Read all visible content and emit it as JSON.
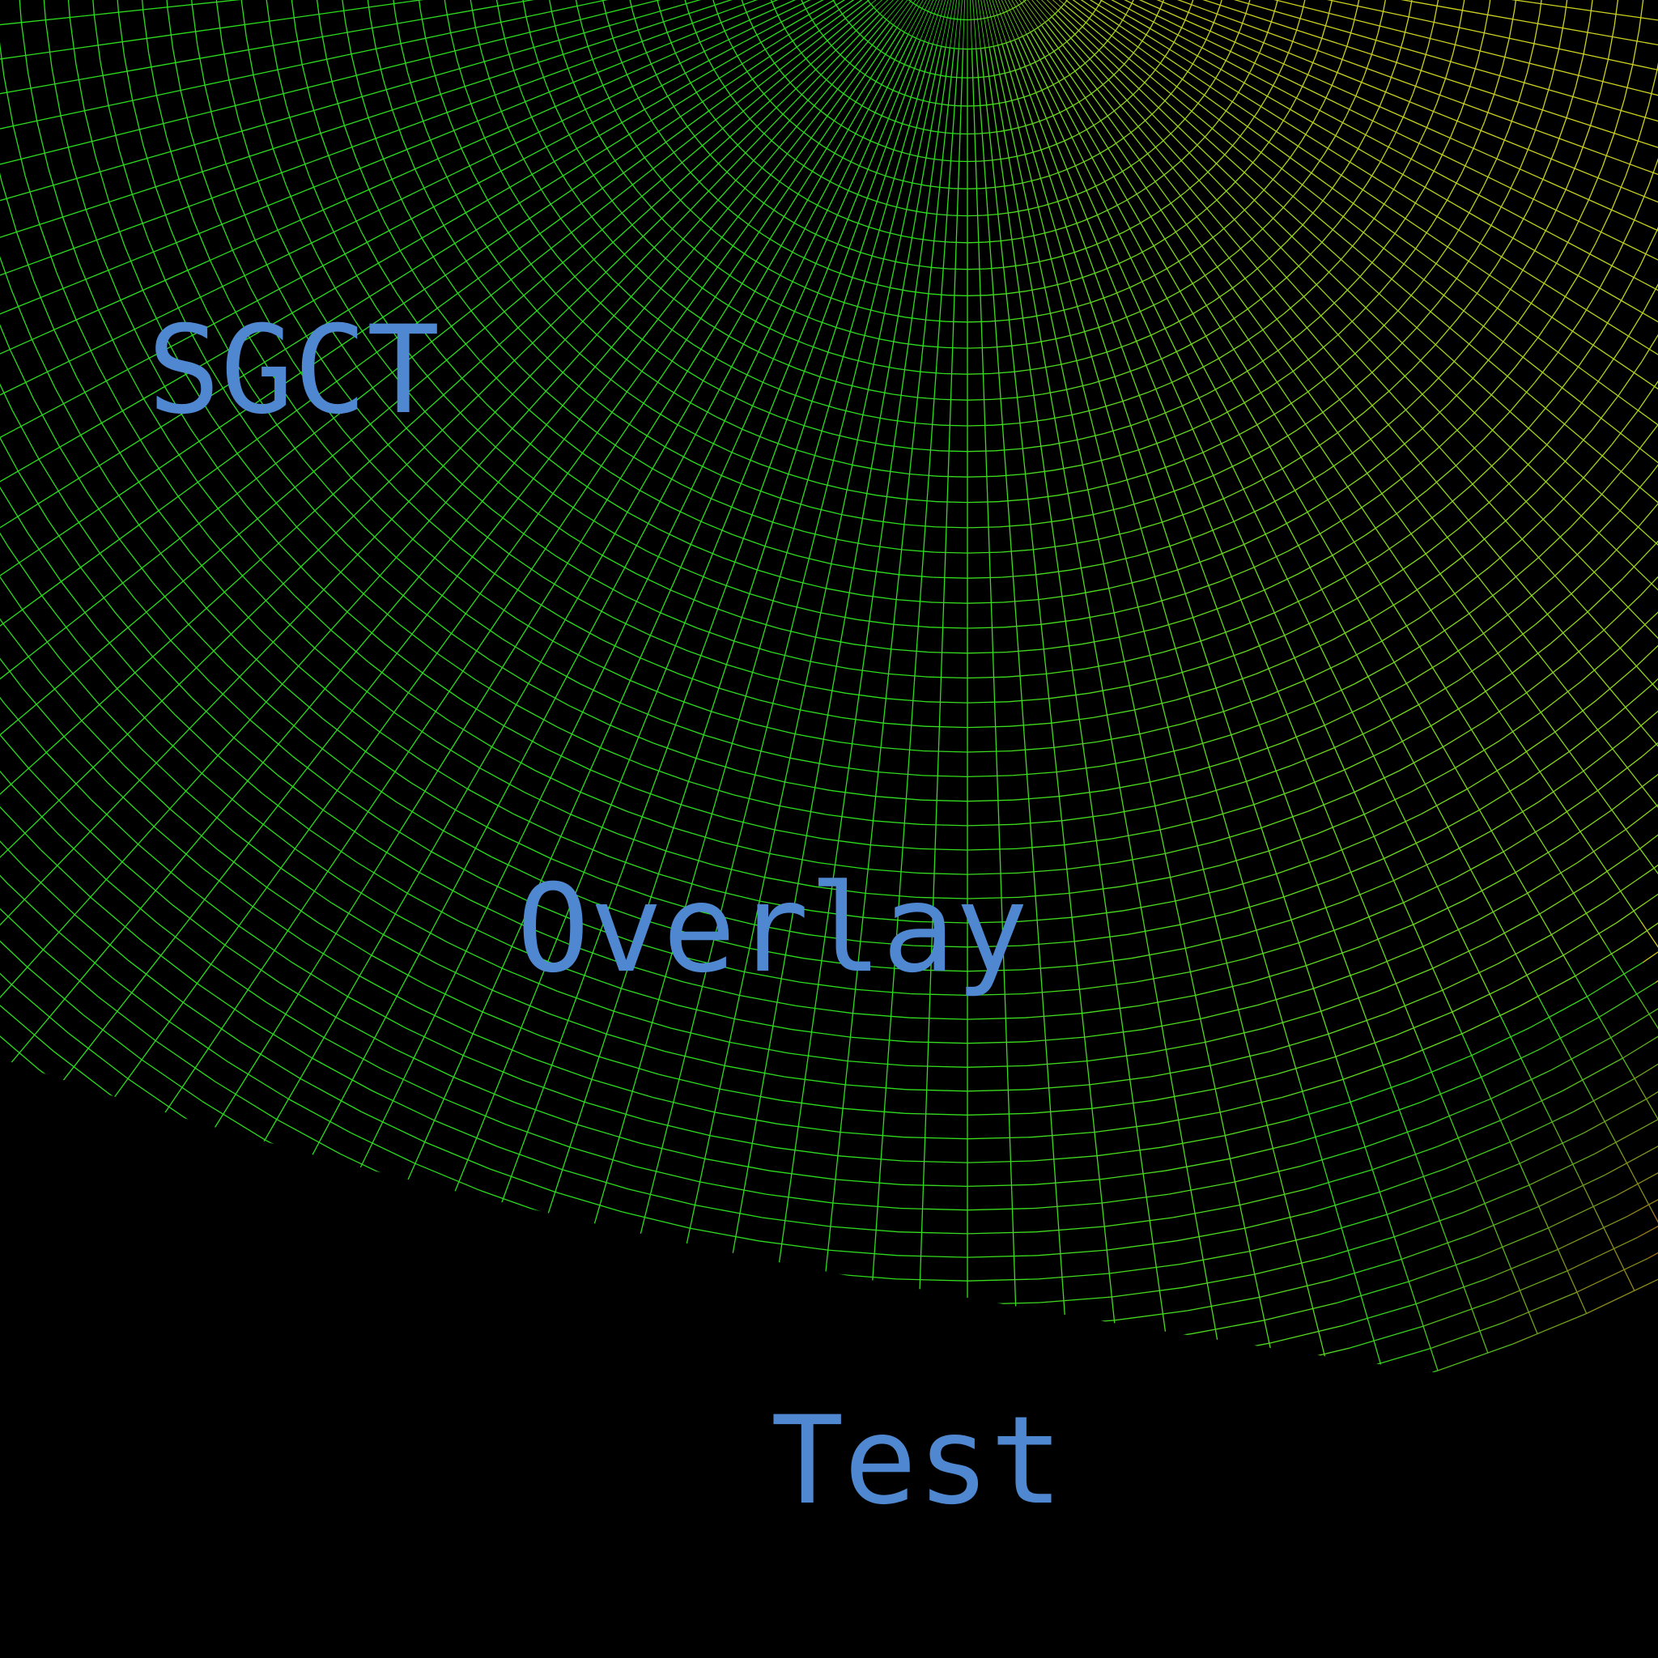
{
  "overlay_text": {
    "line1": "SGCT",
    "line2": "Overlay",
    "line3": "Test"
  },
  "colors": {
    "background": "#000000",
    "text": "#4f88d0",
    "grid_primary": "#2ddc1e",
    "grid_secondary": "#cdd21e",
    "grid_tertiary": "#e0401a"
  }
}
